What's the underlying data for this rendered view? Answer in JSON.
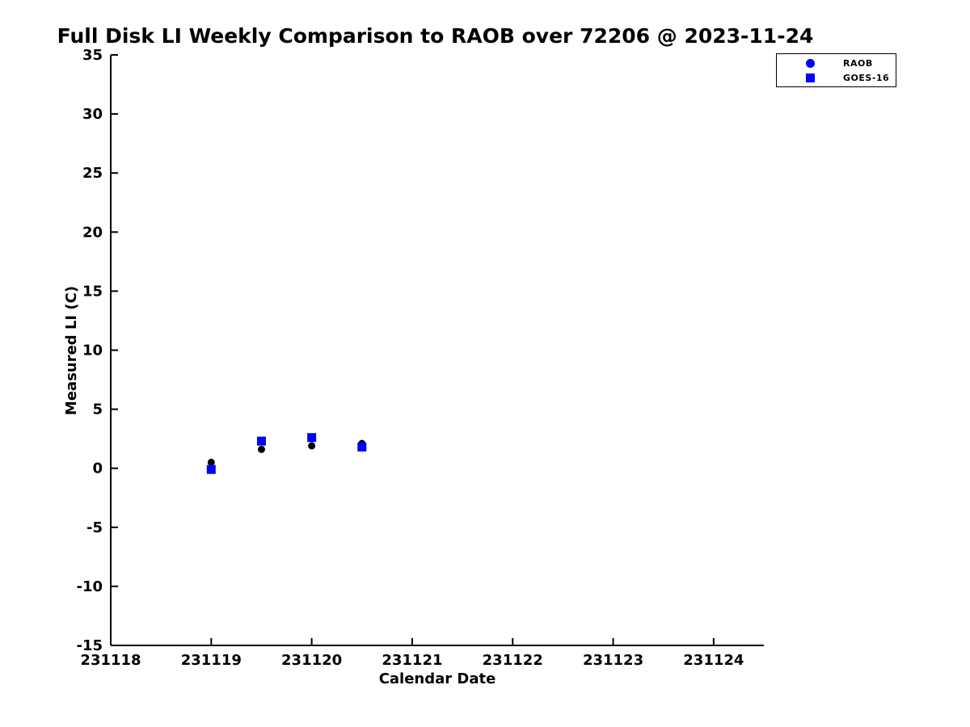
{
  "chart_data": {
    "type": "scatter",
    "title": "Full Disk LI Weekly Comparison to RAOB over 72206 @ 2023-11-24",
    "xlabel": "Calendar Date",
    "ylabel": "Measured LI (C)",
    "xlim": [
      231118,
      231124.5
    ],
    "ylim": [
      -15,
      35
    ],
    "xticks": [
      231118,
      231119,
      231120,
      231121,
      231122,
      231123,
      231124
    ],
    "yticks": [
      35,
      30,
      25,
      20,
      15,
      10,
      5,
      0,
      -5,
      -10,
      -15
    ],
    "grid": false,
    "background": "#ffffff",
    "axis_color": "#000000",
    "legend_position": "top-right",
    "series": [
      {
        "name": "RAOB",
        "marker": "circle",
        "legend_color": "#0000ff",
        "plot_color": "#000000",
        "x": [
          231119.0,
          231119.5,
          231120.0,
          231120.5
        ],
        "y": [
          0.5,
          1.6,
          1.9,
          2.1
        ]
      },
      {
        "name": "GOES-16",
        "marker": "square",
        "legend_color": "#0000ff",
        "plot_color": "#0000ff",
        "x": [
          231119.0,
          231119.5,
          231120.0,
          231120.5
        ],
        "y": [
          -0.1,
          2.3,
          2.6,
          1.8
        ]
      }
    ]
  }
}
